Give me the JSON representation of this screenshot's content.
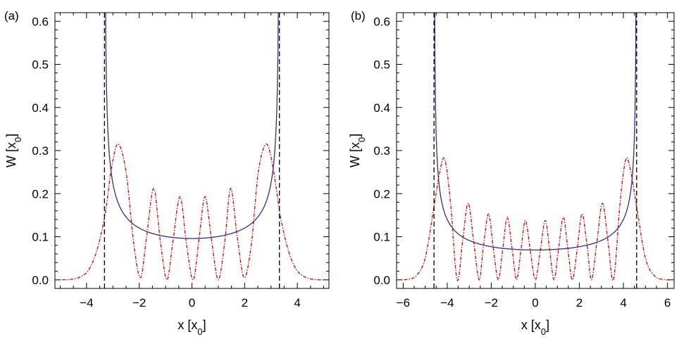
{
  "figure": {
    "panel_labels": [
      "(a)",
      "(b)"
    ]
  },
  "chart_data": [
    {
      "type": "line",
      "panel_label": "(a)",
      "xlabel": "x [x",
      "xlabel_sub": "0",
      "xlabel_suffix": "]",
      "ylabel": "W [x",
      "ylabel_sub": "0",
      "ylabel_suffix": "]",
      "xlim": [
        -5.2,
        5.2
      ],
      "ylim": [
        -0.02,
        0.62
      ],
      "xticks": [
        -4,
        -2,
        0,
        2,
        4
      ],
      "yticks": [
        0.0,
        0.1,
        0.2,
        0.3,
        0.4,
        0.5,
        0.6
      ],
      "ytick_labels": [
        "0.0",
        "0.1",
        "0.2",
        "0.3",
        "0.4",
        "0.5",
        "0.6"
      ],
      "grid": false,
      "series": [
        {
          "style": "solid",
          "color": "#2b2f8f",
          "turning_point": 3.32,
          "x": [
            -3.31,
            -3.3,
            -3.28,
            -3.25,
            -3.2,
            -3.1,
            -3.0,
            -2.8,
            -2.5,
            -2.0,
            -1.5,
            -1.0,
            -0.5,
            0.0,
            0.5,
            1.0,
            1.5,
            2.0,
            2.5,
            2.8,
            3.0,
            3.1,
            3.2,
            3.25,
            3.28,
            3.3,
            3.31
          ],
          "y": [
            0.62,
            0.6,
            0.43,
            0.34,
            0.27,
            0.195,
            0.163,
            0.135,
            0.117,
            0.105,
            0.1,
            0.098,
            0.097,
            0.096,
            0.097,
            0.098,
            0.1,
            0.105,
            0.117,
            0.135,
            0.163,
            0.195,
            0.27,
            0.34,
            0.43,
            0.6,
            0.62
          ]
        },
        {
          "style": "dashed",
          "color": "#dd0000",
          "x": [
            -5.2,
            -4.6,
            -4.2,
            -3.9,
            -3.6,
            -3.3,
            -3.05,
            -2.8,
            -2.5,
            -2.2,
            -1.95,
            -1.72,
            -1.45,
            -1.2,
            -0.95,
            -0.72,
            -0.45,
            -0.2,
            0.05,
            0.28,
            0.5,
            0.75,
            1.0,
            1.25,
            1.47,
            1.72,
            1.98,
            2.25,
            2.52,
            2.82,
            3.08,
            3.35,
            3.65,
            3.95,
            4.25,
            4.6,
            5.2
          ],
          "y": [
            0.0,
            0.001,
            0.008,
            0.025,
            0.07,
            0.15,
            0.26,
            0.315,
            0.25,
            0.08,
            0.005,
            0.1,
            0.212,
            0.09,
            0.0,
            0.09,
            0.193,
            0.08,
            0.0,
            0.1,
            0.193,
            0.09,
            0.0,
            0.09,
            0.212,
            0.1,
            0.005,
            0.08,
            0.25,
            0.315,
            0.26,
            0.15,
            0.07,
            0.025,
            0.008,
            0.001,
            0.0
          ]
        },
        {
          "style": "dashed",
          "color": "#000000",
          "vlines": [
            -3.32,
            3.32
          ]
        }
      ]
    },
    {
      "type": "line",
      "panel_label": "(b)",
      "xlabel": "x [x",
      "xlabel_sub": "0",
      "xlabel_suffix": "]",
      "ylabel": "W [x",
      "ylabel_sub": "0",
      "ylabel_suffix": "]",
      "xlim": [
        -6.3,
        6.3
      ],
      "ylim": [
        -0.02,
        0.62
      ],
      "xticks": [
        -6,
        -4,
        -2,
        0,
        2,
        4,
        6
      ],
      "yticks": [
        0.0,
        0.1,
        0.2,
        0.3,
        0.4,
        0.5,
        0.6
      ],
      "ytick_labels": [
        "0.0",
        "0.1",
        "0.2",
        "0.3",
        "0.4",
        "0.5",
        "0.6"
      ],
      "grid": false,
      "series": [
        {
          "style": "solid",
          "color": "#2b2f8f",
          "turning_point": 4.6,
          "x": [
            -4.59,
            -4.58,
            -4.56,
            -4.52,
            -4.45,
            -4.3,
            -4.1,
            -3.8,
            -3.4,
            -3.0,
            -2.0,
            -1.0,
            0.0,
            1.0,
            2.0,
            3.0,
            3.4,
            3.8,
            4.1,
            4.3,
            4.45,
            4.52,
            4.56,
            4.58,
            4.59
          ],
          "y": [
            0.62,
            0.58,
            0.42,
            0.3,
            0.22,
            0.155,
            0.12,
            0.098,
            0.087,
            0.08,
            0.074,
            0.071,
            0.07,
            0.071,
            0.074,
            0.08,
            0.087,
            0.098,
            0.12,
            0.155,
            0.22,
            0.3,
            0.42,
            0.58,
            0.62
          ]
        },
        {
          "style": "dashed",
          "color": "#dd0000",
          "x": [
            -6.3,
            -5.8,
            -5.4,
            -5.0,
            -4.6,
            -4.3,
            -4.1,
            -3.85,
            -3.55,
            -3.3,
            -3.05,
            -2.8,
            -2.55,
            -2.35,
            -2.12,
            -1.9,
            -1.68,
            -1.47,
            -1.27,
            -1.05,
            -0.85,
            -0.65,
            -0.45,
            -0.22,
            0.0,
            0.22,
            0.45,
            0.65,
            0.85,
            1.05,
            1.27,
            1.47,
            1.68,
            1.9,
            2.12,
            2.35,
            2.55,
            2.8,
            3.05,
            3.3,
            3.55,
            3.85,
            4.1,
            4.3,
            4.6,
            5.0,
            5.4,
            5.8,
            6.3
          ],
          "y": [
            0.0,
            0.001,
            0.01,
            0.05,
            0.17,
            0.26,
            0.278,
            0.18,
            0.0,
            0.09,
            0.178,
            0.09,
            0.0,
            0.08,
            0.153,
            0.07,
            0.0,
            0.075,
            0.145,
            0.07,
            0.0,
            0.07,
            0.138,
            0.065,
            0.0,
            0.065,
            0.138,
            0.07,
            0.0,
            0.07,
            0.145,
            0.075,
            0.0,
            0.07,
            0.153,
            0.08,
            0.0,
            0.09,
            0.178,
            0.09,
            0.0,
            0.18,
            0.278,
            0.26,
            0.17,
            0.05,
            0.01,
            0.001,
            0.0
          ]
        },
        {
          "style": "dashed",
          "color": "#000000",
          "vlines": [
            -4.6,
            4.6
          ]
        }
      ]
    }
  ]
}
